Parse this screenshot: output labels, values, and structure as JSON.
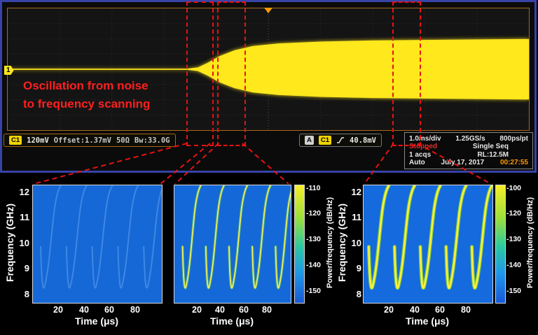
{
  "scope": {
    "trace_color": "#ffe81c",
    "channel_marker": "1",
    "annotation_line1": "Oscillation from noise",
    "annotation_line2": "to frequency scanning",
    "annotation_color": "#ff1f1f",
    "status": {
      "ch_badge": "C1",
      "ch_scale": "120mV",
      "ch_offset": "Offset:1.37mV",
      "ch_coupling": "50Ω",
      "ch_bandwidth": "Bw:33.0G",
      "trig_bus": "A",
      "trig_source": "C1",
      "trig_level": "40.8mV",
      "timebase": "1.0ms/div",
      "sample_rate": "1.25GS/s",
      "sample_interval": "800ps/pt",
      "acq_state": "Stopped",
      "acq_mode": "Single Seq",
      "acq_count": "1 acqs",
      "record_length": "RL:12.5M",
      "trig_mode": "Auto",
      "date": "July 17, 2017",
      "clock": "00:27:55"
    }
  },
  "chart_data": [
    {
      "id": "oscilloscope-trace",
      "type": "line",
      "description": "Single-shot trace: flat noise baseline growing into a saturated oscillation envelope",
      "timebase_per_div": "1.0ms",
      "vertical_scale_per_div": "120mV",
      "envelope_profile": [
        [
          0,
          0.004
        ],
        [
          0.345,
          0.004
        ],
        [
          0.365,
          0.015
        ],
        [
          0.385,
          0.055
        ],
        [
          0.405,
          0.105
        ],
        [
          0.435,
          0.155
        ],
        [
          0.47,
          0.19
        ],
        [
          0.52,
          0.212
        ],
        [
          0.6,
          0.227
        ],
        [
          0.7,
          0.236
        ],
        [
          0.85,
          0.243
        ],
        [
          1,
          0.248
        ]
      ]
    },
    {
      "id": "spectrogram-noise",
      "type": "heatmap",
      "xlabel": "Time (μs)",
      "ylabel": "Frequency (GHz)",
      "x_ticks": [
        20,
        40,
        60,
        80
      ],
      "y_ticks": [
        12,
        11,
        10,
        9,
        8
      ],
      "xlim": [
        0,
        100
      ],
      "ylim": [
        7.7,
        12.3
      ],
      "sweep_start_times_us": [
        6,
        26,
        46,
        66,
        86
      ],
      "sweep_freq_range_ghz": [
        8,
        12.3
      ],
      "intensity": "faint",
      "colorbar": null
    },
    {
      "id": "spectrogram-transition",
      "type": "heatmap",
      "xlabel": "Time (μs)",
      "ylabel": "",
      "x_ticks": [
        20,
        40,
        60,
        80
      ],
      "y_ticks": [],
      "xlim": [
        0,
        100
      ],
      "ylim": [
        7.7,
        12.3
      ],
      "sweep_start_times_us": [
        7,
        27,
        47,
        67,
        87
      ],
      "sweep_freq_range_ghz": [
        8,
        12.3
      ],
      "intensity": "medium",
      "colorbar": {
        "label": "Power/frequency (dB/Hz)",
        "ticks": [
          -110,
          -120,
          -130,
          -140,
          -150
        ]
      }
    },
    {
      "id": "spectrogram-scanning",
      "type": "heatmap",
      "xlabel": "Time (μs)",
      "ylabel": "Frequency (GHz)",
      "x_ticks": [
        20,
        40,
        60,
        80
      ],
      "y_ticks": [
        12,
        11,
        10,
        9,
        8
      ],
      "xlim": [
        0,
        100
      ],
      "ylim": [
        7.7,
        12.3
      ],
      "sweep_start_times_us": [
        4,
        24,
        44,
        64,
        84
      ],
      "sweep_freq_range_ghz": [
        8,
        12.3
      ],
      "intensity": "bright",
      "colorbar": {
        "label": "Power/frequency (dB/Hz)",
        "ticks": [
          -100,
          -120,
          -130,
          -140,
          -150
        ]
      }
    }
  ]
}
